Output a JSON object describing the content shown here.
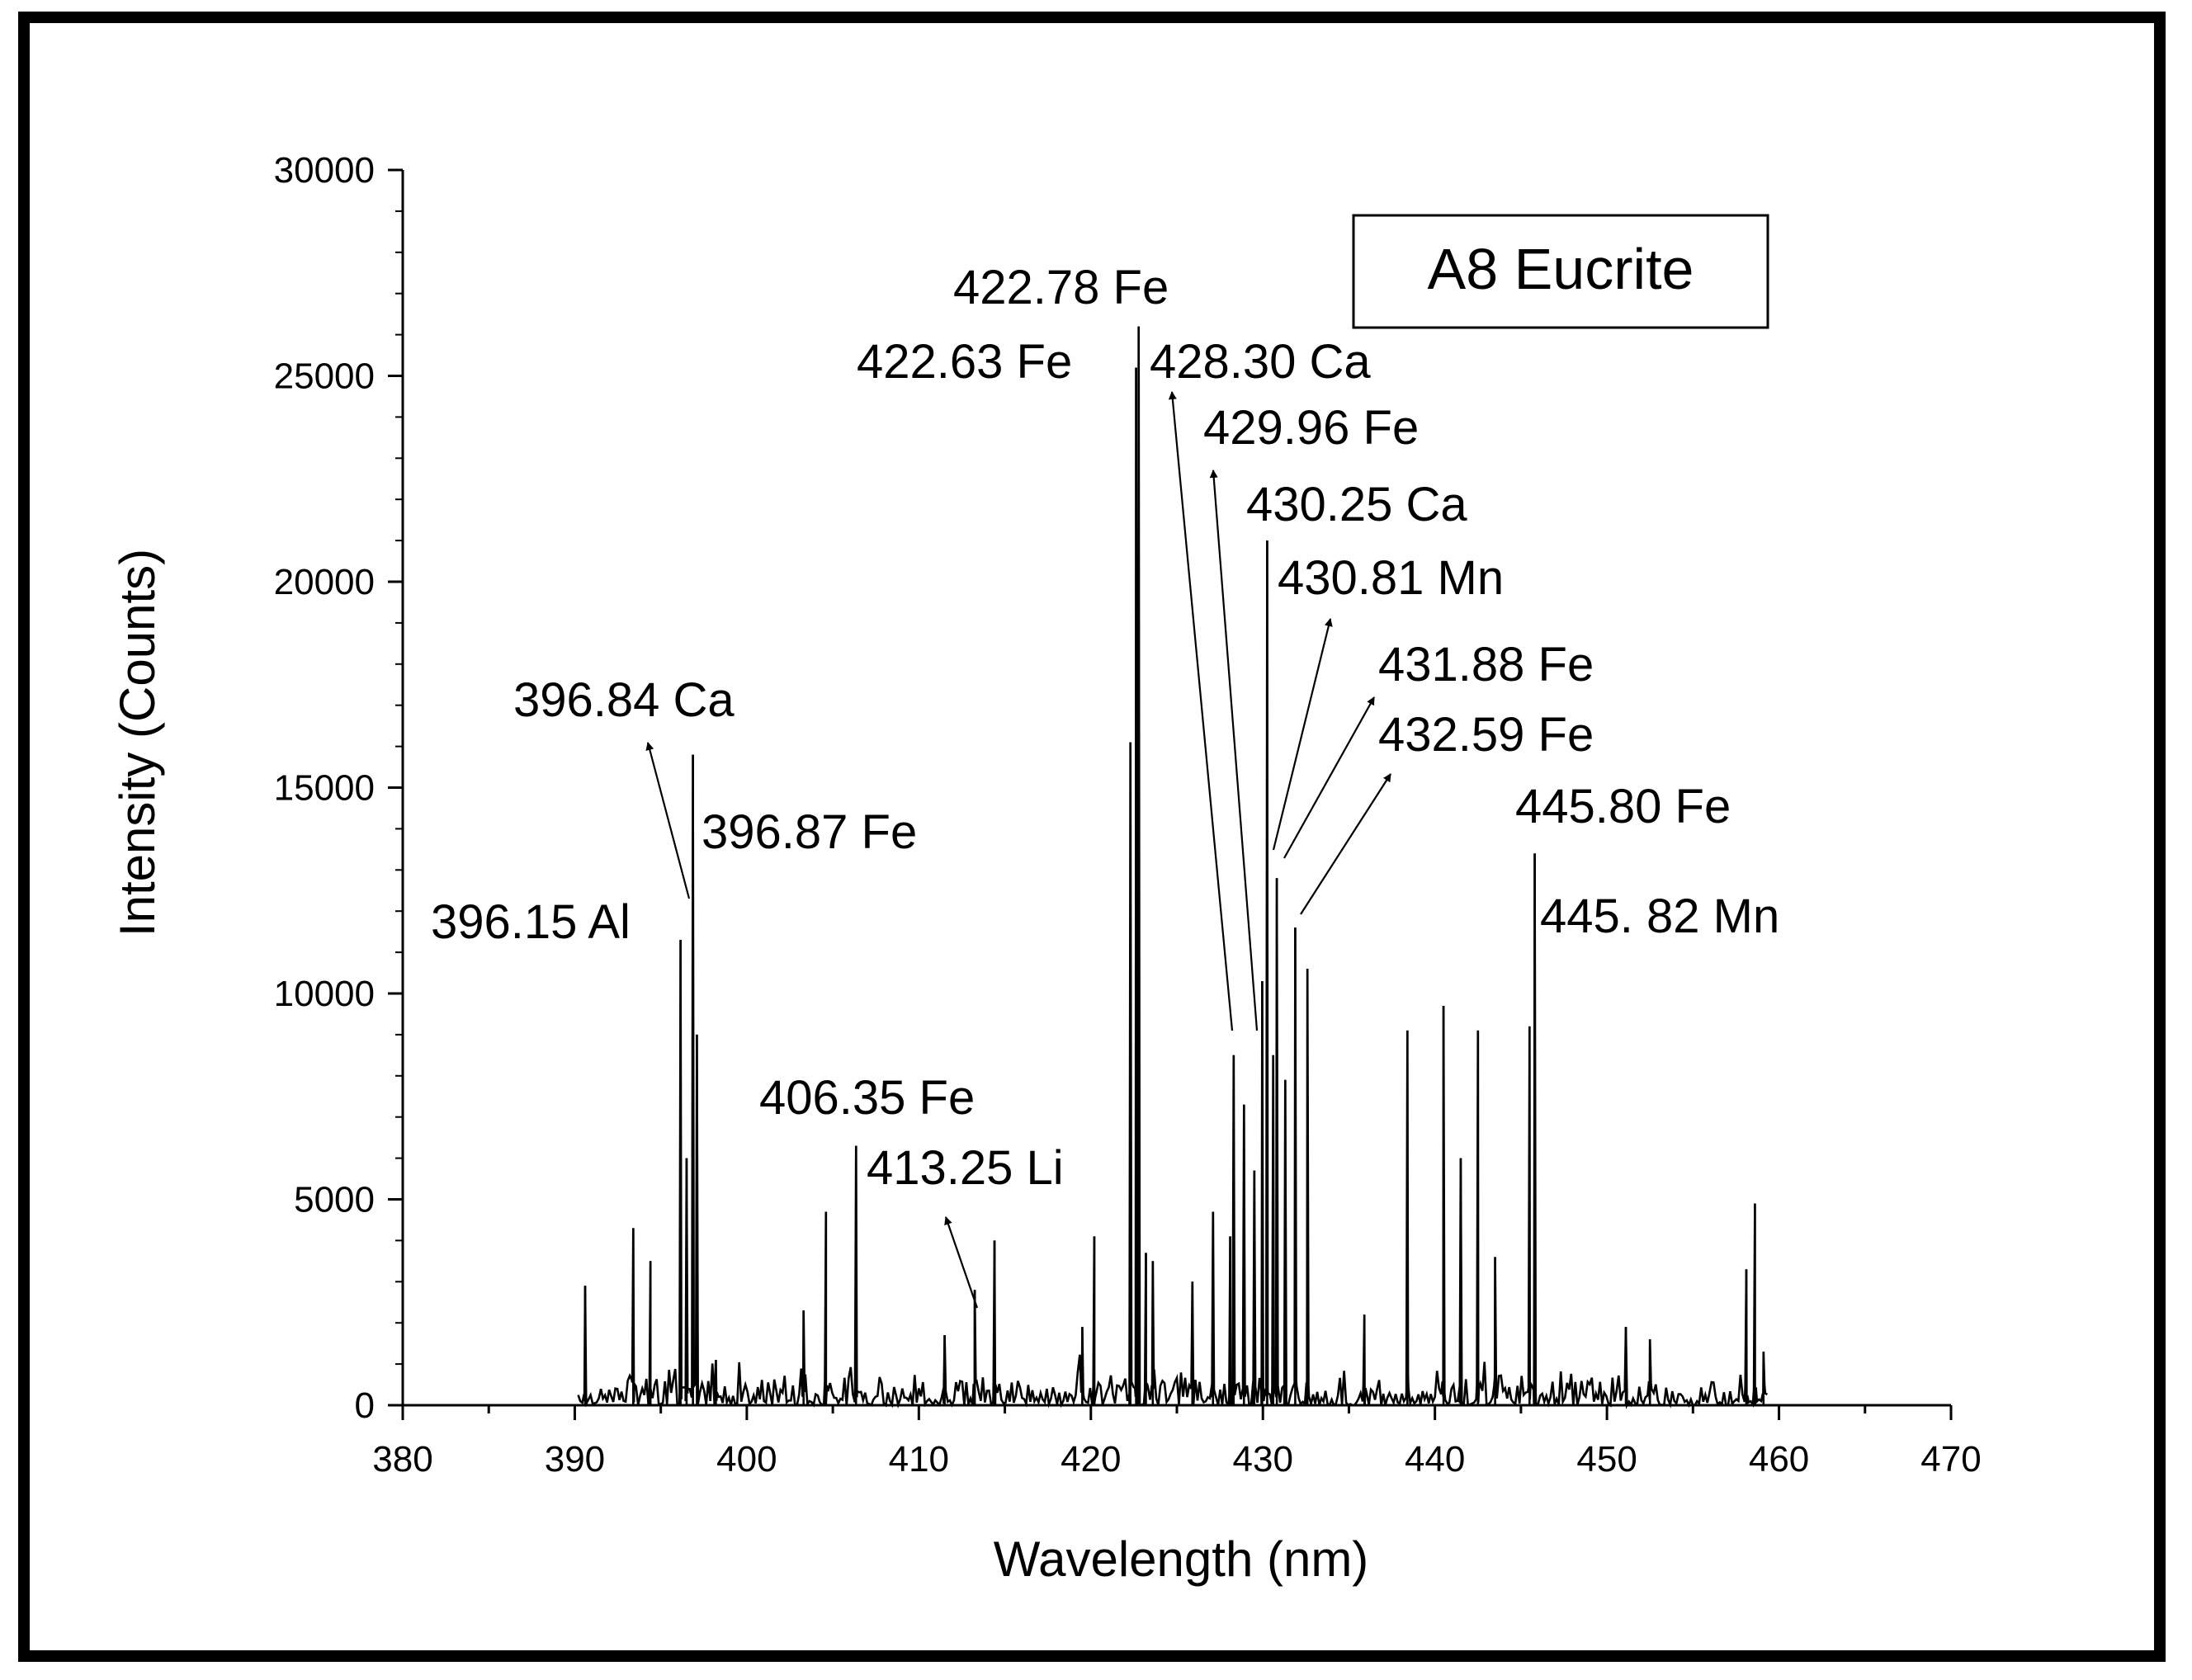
{
  "chart_data": {
    "type": "line",
    "title": "",
    "legend_label": "A8 Eucrite",
    "legend_position": "top-right",
    "xlabel": "Wavelength (nm)",
    "ylabel": "Intensity (Counts)",
    "xlim": [
      380,
      470
    ],
    "ylim": [
      0,
      30000
    ],
    "xticks": [
      380,
      390,
      400,
      410,
      420,
      430,
      440,
      450,
      460,
      470
    ],
    "yticks": [
      0,
      5000,
      10000,
      15000,
      20000,
      25000,
      30000
    ],
    "xtick_labels": [
      "380",
      "390",
      "400",
      "410",
      "420",
      "430",
      "440",
      "450",
      "460",
      "470"
    ],
    "ytick_labels": [
      "0",
      "5000",
      "10000",
      "15000",
      "20000",
      "25000",
      "30000"
    ],
    "grid": false,
    "line_color": "#000000",
    "series": [
      {
        "peaks": [
          {
            "x": 390.6,
            "y": 2900
          },
          {
            "x": 393.4,
            "y": 4300
          },
          {
            "x": 394.4,
            "y": 3500
          },
          {
            "x": 396.15,
            "y": 11300
          },
          {
            "x": 396.5,
            "y": 6000
          },
          {
            "x": 396.87,
            "y": 15800
          },
          {
            "x": 397.1,
            "y": 9000
          },
          {
            "x": 398.2,
            "y": 1100
          },
          {
            "x": 403.3,
            "y": 2300
          },
          {
            "x": 404.6,
            "y": 4700
          },
          {
            "x": 406.35,
            "y": 6300
          },
          {
            "x": 411.5,
            "y": 1700
          },
          {
            "x": 413.25,
            "y": 2800
          },
          {
            "x": 414.4,
            "y": 4000
          },
          {
            "x": 419.5,
            "y": 1900
          },
          {
            "x": 420.2,
            "y": 4100
          },
          {
            "x": 422.3,
            "y": 16100
          },
          {
            "x": 422.63,
            "y": 25200
          },
          {
            "x": 422.78,
            "y": 26200
          },
          {
            "x": 423.2,
            "y": 3700
          },
          {
            "x": 423.6,
            "y": 3500
          },
          {
            "x": 425.9,
            "y": 3000
          },
          {
            "x": 427.1,
            "y": 4700
          },
          {
            "x": 428.1,
            "y": 4100
          },
          {
            "x": 428.3,
            "y": 8500
          },
          {
            "x": 428.9,
            "y": 7300
          },
          {
            "x": 429.5,
            "y": 5700
          },
          {
            "x": 429.96,
            "y": 10300
          },
          {
            "x": 430.25,
            "y": 21000
          },
          {
            "x": 430.6,
            "y": 8500
          },
          {
            "x": 430.81,
            "y": 12800
          },
          {
            "x": 431.3,
            "y": 7900
          },
          {
            "x": 431.88,
            "y": 11600
          },
          {
            "x": 432.59,
            "y": 10600
          },
          {
            "x": 435.9,
            "y": 2200
          },
          {
            "x": 438.4,
            "y": 9100
          },
          {
            "x": 440.5,
            "y": 9700
          },
          {
            "x": 441.5,
            "y": 6000
          },
          {
            "x": 442.5,
            "y": 9100
          },
          {
            "x": 443.5,
            "y": 3600
          },
          {
            "x": 445.5,
            "y": 9200
          },
          {
            "x": 445.8,
            "y": 13400
          },
          {
            "x": 451.1,
            "y": 1900
          },
          {
            "x": 452.5,
            "y": 1600
          },
          {
            "x": 458.1,
            "y": 3300
          },
          {
            "x": 458.6,
            "y": 4900
          },
          {
            "x": 459.1,
            "y": 1300
          }
        ]
      }
    ],
    "annotations": [
      {
        "text": "422.78 Fe",
        "arrow": false
      },
      {
        "text": "422.63 Fe",
        "arrow": false
      },
      {
        "text": "428.30 Ca",
        "arrow": true
      },
      {
        "text": "429.96 Fe",
        "arrow": true
      },
      {
        "text": "430.25 Ca",
        "arrow": false
      },
      {
        "text": "430.81 Mn",
        "arrow": true
      },
      {
        "text": "431.88 Fe",
        "arrow": true
      },
      {
        "text": "432.59 Fe",
        "arrow": true
      },
      {
        "text": "445.80 Fe",
        "arrow": false
      },
      {
        "text": "445. 82 Mn",
        "arrow": false
      },
      {
        "text": "396.84 Ca",
        "arrow": true
      },
      {
        "text": "396.87 Fe",
        "arrow": false
      },
      {
        "text": "396.15 Al",
        "arrow": false
      },
      {
        "text": "406.35 Fe",
        "arrow": false
      },
      {
        "text": "413.25 Li",
        "arrow": true
      }
    ]
  }
}
